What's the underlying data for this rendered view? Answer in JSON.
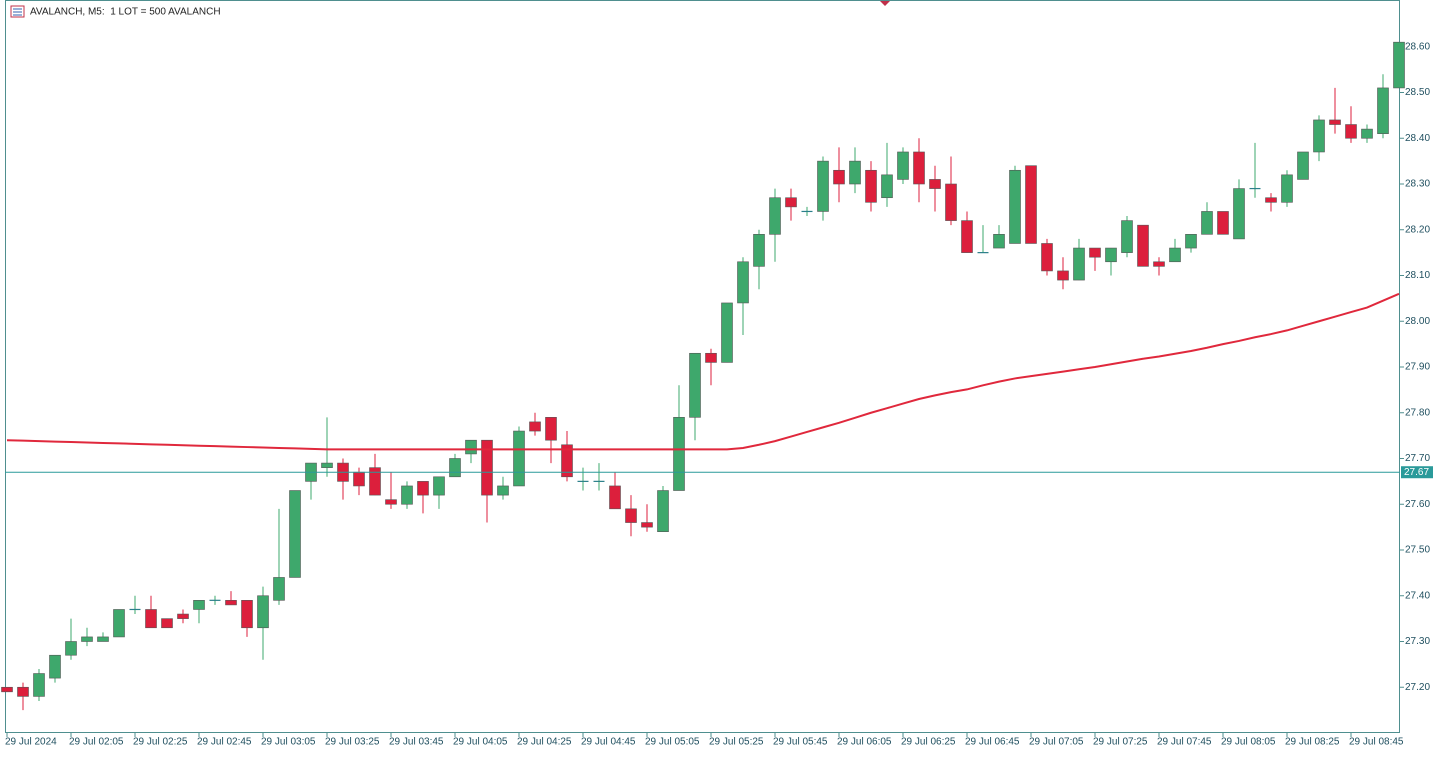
{
  "chart_data": {
    "type": "candlestick",
    "title": "AVALANCH, M5:  1 LOT = 500 AVALANCH",
    "categories": [
      "29 Jul 2024",
      null,
      null,
      null,
      "29 Jul 02:05",
      null,
      null,
      null,
      "29 Jul 02:25",
      null,
      null,
      null,
      "29 Jul 02:45",
      null,
      null,
      null,
      "29 Jul 03:05",
      null,
      null,
      null,
      "29 Jul 03:25",
      null,
      null,
      null,
      "29 Jul 03:45",
      null,
      null,
      null,
      "29 Jul 04:05",
      null,
      null,
      null,
      "29 Jul 04:25",
      null,
      null,
      null,
      "29 Jul 04:45",
      null,
      null,
      null,
      "29 Jul 05:05",
      null,
      null,
      null,
      "29 Jul 05:25",
      null,
      null,
      null,
      "29 Jul 05:45",
      null,
      null,
      null,
      "29 Jul 06:05",
      null,
      null,
      null,
      "29 Jul 06:25",
      null,
      null,
      null,
      "29 Jul 06:45",
      null,
      null,
      null,
      "29 Jul 07:05",
      null,
      null,
      null,
      "29 Jul 07:25",
      null,
      null,
      null,
      "29 Jul 07:45",
      null,
      null,
      null,
      "29 Jul 08:05",
      null,
      null,
      null,
      "29 Jul 08:25",
      null,
      null,
      null,
      "29 Jul 08:45",
      null,
      null,
      null
    ],
    "open": [
      27.2,
      27.2,
      27.18,
      27.22,
      27.27,
      27.3,
      27.3,
      27.31,
      27.37,
      27.37,
      27.35,
      27.36,
      27.37,
      27.39,
      27.39,
      27.39,
      27.33,
      27.39,
      27.44,
      27.65,
      27.68,
      27.69,
      27.67,
      27.68,
      27.61,
      27.6,
      27.65,
      27.62,
      27.66,
      27.71,
      27.74,
      27.62,
      27.64,
      27.78,
      27.79,
      27.73,
      27.65,
      27.65,
      27.64,
      27.59,
      27.56,
      27.54,
      27.63,
      27.79,
      27.93,
      27.91,
      28.04,
      28.12,
      28.19,
      28.27,
      28.24,
      28.24,
      28.33,
      28.3,
      28.33,
      28.27,
      28.31,
      28.37,
      28.31,
      28.3,
      28.22,
      28.15,
      28.16,
      28.17,
      28.34,
      28.17,
      28.11,
      28.09,
      28.16,
      28.13,
      28.15,
      28.21,
      28.13,
      28.13,
      28.16,
      28.19,
      28.24,
      28.18,
      28.29,
      28.27,
      28.26,
      28.31,
      28.37,
      28.44,
      28.43,
      28.4,
      28.41,
      28.51
    ],
    "high": [
      27.2,
      27.21,
      27.24,
      27.27,
      27.35,
      27.33,
      27.32,
      27.37,
      27.4,
      27.4,
      27.35,
      27.37,
      27.39,
      27.4,
      27.41,
      27.39,
      27.42,
      27.59,
      27.63,
      27.69,
      27.79,
      27.7,
      27.68,
      27.71,
      27.67,
      27.65,
      27.65,
      27.66,
      27.71,
      27.74,
      27.74,
      27.66,
      27.77,
      27.8,
      27.79,
      27.76,
      27.68,
      27.69,
      27.67,
      27.62,
      27.6,
      27.64,
      27.86,
      27.93,
      27.94,
      28.04,
      28.14,
      28.2,
      28.29,
      28.29,
      28.25,
      28.36,
      28.38,
      28.38,
      28.35,
      28.39,
      28.38,
      28.4,
      28.34,
      28.36,
      28.24,
      28.21,
      28.21,
      28.34,
      28.34,
      28.18,
      28.14,
      28.18,
      28.16,
      28.16,
      28.23,
      28.21,
      28.14,
      28.18,
      28.19,
      28.26,
      28.24,
      28.31,
      28.39,
      28.28,
      28.33,
      28.37,
      28.45,
      28.51,
      28.47,
      28.43,
      28.54,
      28.61
    ],
    "low": [
      27.19,
      27.15,
      27.17,
      27.21,
      27.26,
      27.29,
      27.3,
      27.31,
      27.36,
      27.33,
      27.33,
      27.34,
      27.34,
      27.38,
      27.38,
      27.31,
      27.26,
      27.38,
      27.44,
      27.61,
      27.66,
      27.61,
      27.62,
      27.62,
      27.59,
      27.59,
      27.58,
      27.59,
      27.66,
      27.69,
      27.56,
      27.61,
      27.64,
      27.75,
      27.69,
      27.65,
      27.63,
      27.63,
      27.59,
      27.53,
      27.54,
      27.54,
      27.63,
      27.74,
      27.86,
      27.91,
      27.97,
      28.07,
      28.13,
      28.22,
      28.23,
      28.22,
      28.26,
      28.28,
      28.24,
      28.25,
      28.3,
      28.26,
      28.24,
      28.21,
      28.15,
      28.15,
      28.16,
      28.17,
      28.17,
      28.1,
      28.07,
      28.09,
      28.11,
      28.1,
      28.14,
      28.12,
      28.1,
      28.13,
      28.15,
      28.19,
      28.19,
      28.18,
      28.27,
      28.24,
      28.25,
      28.31,
      28.35,
      28.41,
      28.39,
      28.39,
      28.4,
      28.51
    ],
    "close": [
      27.19,
      27.18,
      27.23,
      27.27,
      27.3,
      27.31,
      27.31,
      27.37,
      27.37,
      27.33,
      27.33,
      27.35,
      27.39,
      27.39,
      27.38,
      27.33,
      27.4,
      27.44,
      27.63,
      27.69,
      27.69,
      27.65,
      27.64,
      27.62,
      27.6,
      27.64,
      27.62,
      27.66,
      27.7,
      27.74,
      27.62,
      27.64,
      27.76,
      27.76,
      27.74,
      27.66,
      27.65,
      27.65,
      27.59,
      27.56,
      27.55,
      27.63,
      27.79,
      27.93,
      27.91,
      28.04,
      28.13,
      28.19,
      28.27,
      28.25,
      28.24,
      28.35,
      28.3,
      28.35,
      28.26,
      28.32,
      28.37,
      28.3,
      28.29,
      28.22,
      28.15,
      28.15,
      28.19,
      28.33,
      28.17,
      28.11,
      28.09,
      28.16,
      28.14,
      28.16,
      28.22,
      28.12,
      28.12,
      28.16,
      28.19,
      28.24,
      28.19,
      28.29,
      28.29,
      28.26,
      28.32,
      28.37,
      28.44,
      28.43,
      28.4,
      28.42,
      28.51,
      28.61
    ],
    "up_color": "#3ea86c",
    "down_color": "#dc1f3c",
    "overlays": [
      {
        "type": "line",
        "color": "#e0283c",
        "values": [
          27.74,
          27.739,
          27.738,
          27.737,
          27.736,
          27.735,
          27.734,
          27.733,
          27.732,
          27.731,
          27.73,
          27.729,
          27.728,
          27.727,
          27.726,
          27.725,
          27.724,
          27.723,
          27.722,
          27.721,
          27.72,
          27.72,
          27.72,
          27.72,
          27.72,
          27.72,
          27.72,
          27.72,
          27.72,
          27.72,
          27.72,
          27.72,
          27.72,
          27.72,
          27.72,
          27.72,
          27.72,
          27.72,
          27.72,
          27.72,
          27.72,
          27.72,
          27.72,
          27.72,
          27.72,
          27.72,
          27.723,
          27.73,
          27.738,
          27.748,
          27.758,
          27.768,
          27.778,
          27.789,
          27.8,
          27.81,
          27.82,
          27.83,
          27.838,
          27.845,
          27.851,
          27.86,
          27.868,
          27.875,
          27.88,
          27.885,
          27.89,
          27.895,
          27.9,
          27.906,
          27.912,
          27.918,
          27.923,
          27.929,
          27.935,
          27.942,
          27.95,
          27.957,
          27.965,
          27.972,
          27.98,
          27.99,
          28.0,
          28.01,
          28.02,
          28.03,
          28.045,
          28.06
        ]
      }
    ],
    "current_price": 27.67,
    "current_price_color": "#2a9a9a",
    "ylim": [
      27.1,
      28.7
    ],
    "yticks": [
      {
        "value": 27.2,
        "label": "27.20"
      },
      {
        "value": 27.3,
        "label": "27.30"
      },
      {
        "value": 27.4,
        "label": "27.40"
      },
      {
        "value": 27.5,
        "label": "27.50"
      },
      {
        "value": 27.6,
        "label": "27.60"
      },
      {
        "value": 27.7,
        "label": "27.70"
      },
      {
        "value": 27.8,
        "label": "27.80"
      },
      {
        "value": 27.9,
        "label": "27.90"
      },
      {
        "value": 28.0,
        "label": "28.00"
      },
      {
        "value": 28.1,
        "label": "28.10"
      },
      {
        "value": 28.2,
        "label": "28.20"
      },
      {
        "value": 28.3,
        "label": "28.30"
      },
      {
        "value": 28.4,
        "label": "28.40"
      },
      {
        "value": 28.5,
        "label": "28.50"
      },
      {
        "value": 28.6,
        "label": "28.60"
      }
    ],
    "grid": false
  }
}
